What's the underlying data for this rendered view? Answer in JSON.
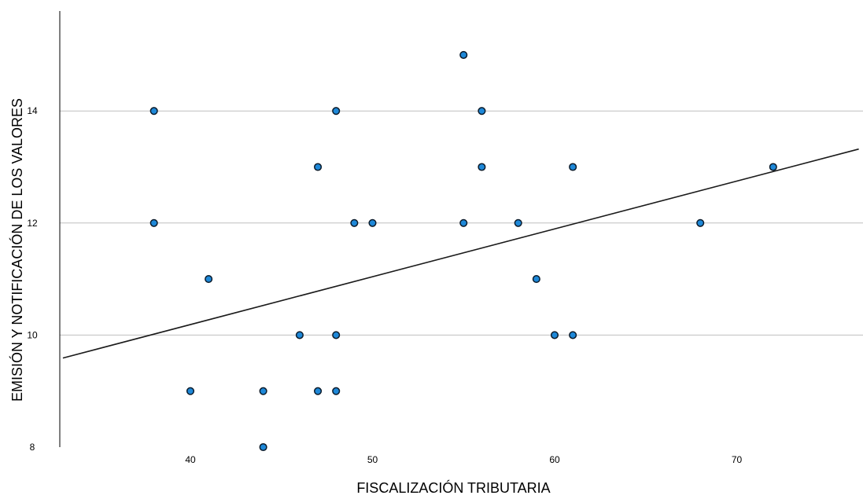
{
  "chart_data": {
    "type": "scatter",
    "title": "",
    "xlabel": "FISCALIZACIÓN TRIBUTARIA",
    "ylabel": "EMISIÓN Y NOTIFICACIÓN DE LOS VALORES",
    "xlim": [
      33,
      76.7
    ],
    "ylim": [
      8,
      16
    ],
    "xticks": [
      40,
      50,
      60,
      70
    ],
    "yticks": [
      8,
      10,
      12,
      14
    ],
    "grid": "horizontal",
    "points": [
      {
        "x": 38,
        "y": 14
      },
      {
        "x": 38,
        "y": 12
      },
      {
        "x": 40,
        "y": 9
      },
      {
        "x": 41,
        "y": 11
      },
      {
        "x": 44,
        "y": 9
      },
      {
        "x": 44,
        "y": 8
      },
      {
        "x": 46,
        "y": 10
      },
      {
        "x": 47,
        "y": 13
      },
      {
        "x": 47,
        "y": 9
      },
      {
        "x": 48,
        "y": 14
      },
      {
        "x": 48,
        "y": 10
      },
      {
        "x": 48,
        "y": 9
      },
      {
        "x": 49,
        "y": 12
      },
      {
        "x": 50,
        "y": 12
      },
      {
        "x": 55,
        "y": 15
      },
      {
        "x": 55,
        "y": 12
      },
      {
        "x": 56,
        "y": 14
      },
      {
        "x": 56,
        "y": 13
      },
      {
        "x": 58,
        "y": 12
      },
      {
        "x": 59,
        "y": 11
      },
      {
        "x": 60,
        "y": 10
      },
      {
        "x": 61,
        "y": 13
      },
      {
        "x": 61,
        "y": 10
      },
      {
        "x": 68,
        "y": 12
      },
      {
        "x": 72,
        "y": 13
      }
    ],
    "fit_line": {
      "x": [
        33,
        76.7
      ],
      "y": [
        9.59,
        13.32
      ]
    },
    "colors": {
      "point_fill": "#1e88d8",
      "point_stroke": "#0b1b2b",
      "fit_line": "#1a1a1a",
      "grid": "#bfbfbf"
    }
  }
}
